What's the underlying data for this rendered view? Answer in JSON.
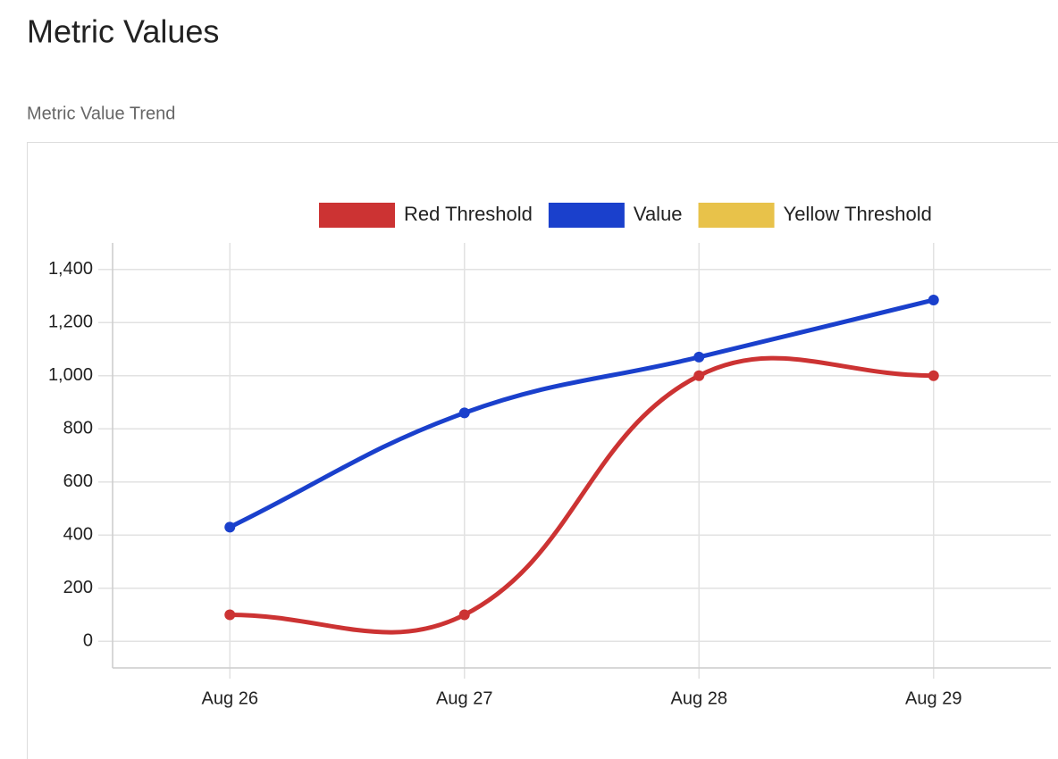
{
  "header": {
    "title": "Metric Values",
    "subtitle": "Metric Value Trend"
  },
  "chart_data": {
    "type": "line",
    "categories": [
      "Aug 26",
      "Aug 27",
      "Aug 28",
      "Aug 29"
    ],
    "series": [
      {
        "name": "Red Threshold",
        "color": "#cc3333",
        "values": [
          100,
          100,
          1000,
          1000
        ]
      },
      {
        "name": "Value",
        "color": "#1a40cc",
        "values": [
          430,
          860,
          1070,
          1285
        ]
      },
      {
        "name": "Yellow Threshold",
        "color": "#e8c24a",
        "values": [
          null,
          null,
          null,
          null
        ]
      }
    ],
    "ylim": [
      -100,
      1500
    ],
    "yticks": [
      0,
      200,
      400,
      600,
      800,
      {
        "value": 1000,
        "label": "1,000"
      },
      {
        "value": 1200,
        "label": "1,200"
      },
      {
        "value": 1400,
        "label": "1,400"
      }
    ],
    "grid": true,
    "legend": "top",
    "smooth": true
  }
}
